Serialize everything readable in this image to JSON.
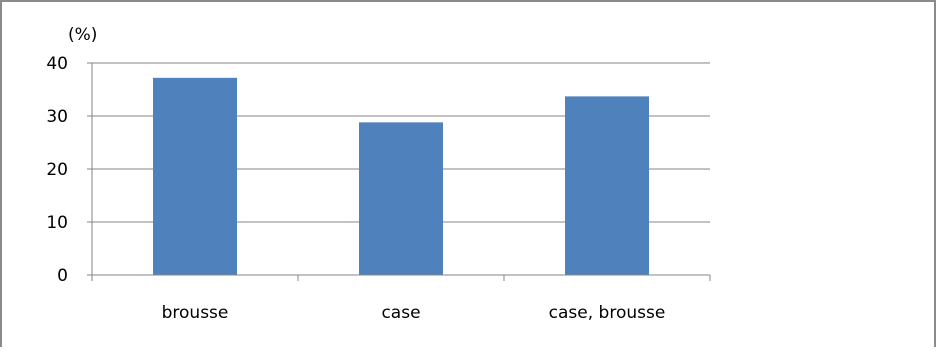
{
  "chart_data": {
    "type": "bar",
    "categories": [
      "brousse",
      "case",
      "case, brousse"
    ],
    "values": [
      37.2,
      28.8,
      33.7
    ],
    "ylabel": "(%)",
    "ylim": [
      0,
      40
    ],
    "yticks": [
      0,
      10,
      20,
      30,
      40
    ],
    "grid": true,
    "legend": "none",
    "bar_color": "#4F81BD",
    "grid_color": "#868686"
  }
}
